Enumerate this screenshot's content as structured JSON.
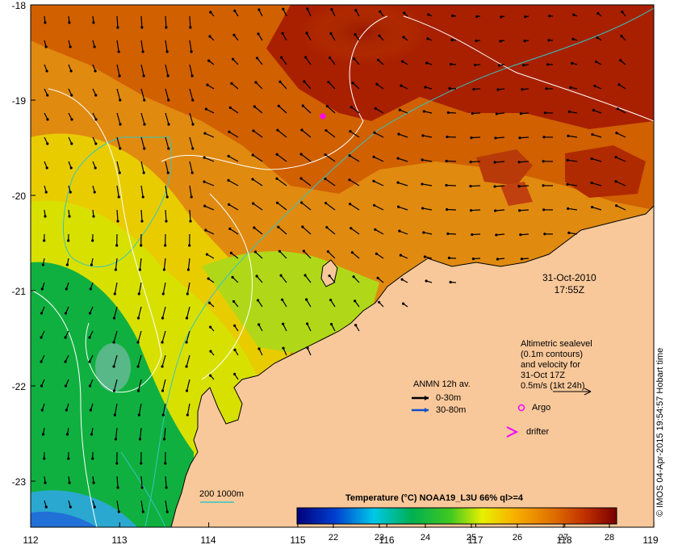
{
  "axes": {
    "y_labels": [
      "-18",
      "-19",
      "-20",
      "-21",
      "-22",
      "-23"
    ],
    "x_labels": [
      "112",
      "113",
      "114",
      "115",
      "116",
      "117",
      "118",
      "119"
    ]
  },
  "timestamp": {
    "date": "31-Oct-2010",
    "time": "17:55Z"
  },
  "altimetry": {
    "line1": "Altimetric sealevel",
    "line2": "(0.1m contours)",
    "line3": "and velocity for",
    "line4": "31-Oct 17Z",
    "scale": "0.5m/s (1kt 24h)"
  },
  "anmn": {
    "title": "ANMN 12h av.",
    "shallow": "0-30m",
    "deep": "30-80m"
  },
  "markers": {
    "argo": "Argo",
    "drifter": "drifter"
  },
  "isobath_label": "200  1000m",
  "colorbar": {
    "title": "Temperature (°C) NOAA19_L3U 66% ql>=4",
    "ticks": [
      "22",
      "23",
      "24",
      "25",
      "26",
      "27",
      "28"
    ]
  },
  "credit": "© IMOS 04-Apr-2015 19:54:57 Hobart time",
  "colors": {
    "land": "#f9c89a",
    "shelf_contour": "#35c6c0",
    "sealevel_contour": "#ffffff",
    "argo": "#ff00ff",
    "anmn_shallow": "#000000",
    "anmn_deep": "#1550c8"
  }
}
